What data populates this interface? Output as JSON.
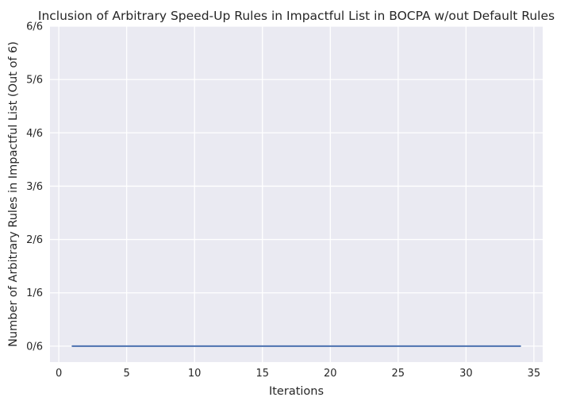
{
  "chart_data": {
    "type": "line",
    "title": "Inclusion of Arbitrary Speed-Up Rules in Impactful List in BOCPA w/out Default Rules",
    "xlabel": "Iterations",
    "ylabel": "Number of Arbitrary Rules in Impactful List (Out of 6)",
    "xlim": [
      -0.65,
      35.65
    ],
    "ylim": [
      -0.3,
      6
    ],
    "xticks": [
      0,
      5,
      10,
      15,
      20,
      25,
      30,
      35
    ],
    "xtick_labels": [
      "0",
      "5",
      "10",
      "15",
      "20",
      "25",
      "30",
      "35"
    ],
    "yticks": [
      0,
      1,
      2,
      3,
      4,
      5,
      6
    ],
    "ytick_labels": [
      "0/6",
      "1/6",
      "2/6",
      "3/6",
      "4/6",
      "5/6",
      "6/6"
    ],
    "grid": true,
    "background": "#eaeaf2",
    "gridline_color": "#ffffff",
    "series": [
      {
        "color": "#4c72b0",
        "x": [
          1,
          34
        ],
        "y": [
          0,
          0
        ]
      }
    ]
  }
}
